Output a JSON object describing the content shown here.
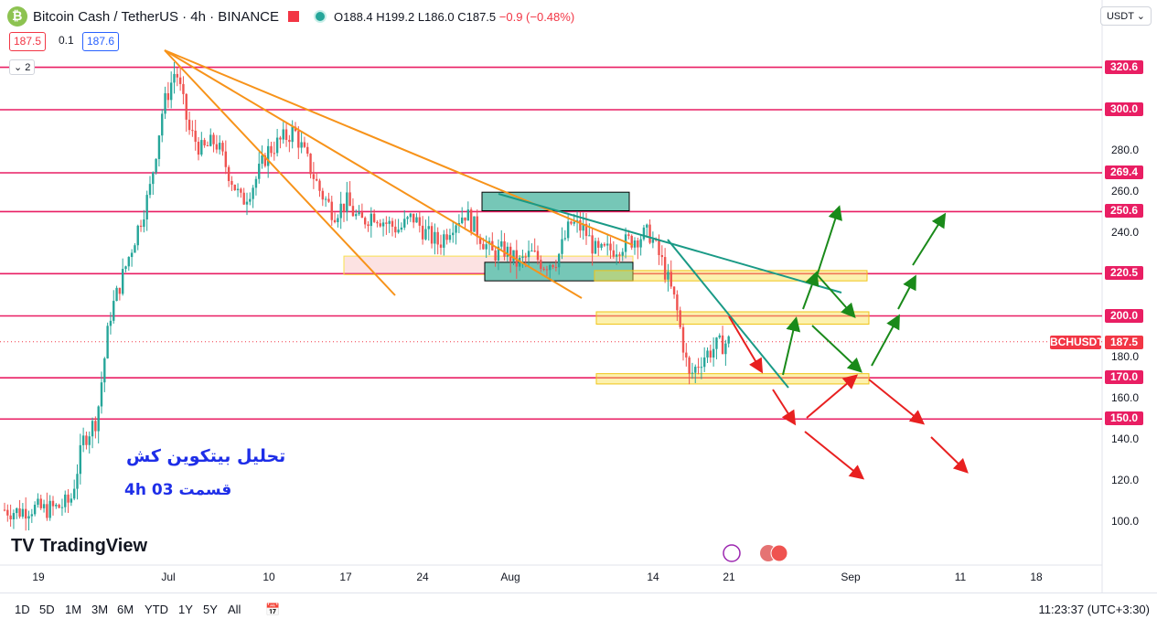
{
  "header": {
    "title": "Bitcoin Cash / TetherUS · 4h · BINANCE",
    "ohlc": {
      "o": "O188.4",
      "h": "H199.2",
      "l": "L186.0",
      "c": "C187.5",
      "chg": "−0.9 (−0.48%)"
    },
    "currency": "USDT"
  },
  "price_boxes": {
    "bid": "187.5",
    "spread": "0.1",
    "ask": "187.6"
  },
  "layers": "2",
  "branding": "TradingView",
  "annotations": {
    "title_fa": "تحلیل بیتکوین کش",
    "part_fa": "قسمت 03    4h"
  },
  "timeframes": [
    "1D",
    "5D",
    "1M",
    "3M",
    "6M",
    "YTD",
    "1Y",
    "5Y",
    "All"
  ],
  "clock": "11:23:37 (UTC+3:30)",
  "colors": {
    "up": "#26a69a",
    "down": "#ef5350",
    "level": "#e91e63",
    "trend": "#f7931a",
    "zone": "#f9e14b",
    "box": "#76c7b7"
  },
  "chart_data": {
    "type": "candlestick",
    "symbol": "BCHUSDT",
    "last_price": "187.5",
    "ylim": [
      80,
      330
    ],
    "y_ticks": [
      "100.0",
      "120.0",
      "140.0",
      "160.0",
      "180.0",
      "240.0",
      "260.0",
      "280.0"
    ],
    "levels": [
      "320.6",
      "300.0",
      "269.4",
      "250.6",
      "220.5",
      "200.0",
      "170.0",
      "150.0"
    ],
    "x_ticks": [
      "19",
      "Jul",
      "10",
      "17",
      "24",
      "Aug",
      "14",
      "21",
      "Sep",
      "11",
      "18"
    ],
    "path_closes": [
      106,
      105,
      107,
      106,
      107,
      110,
      140,
      150,
      200,
      220,
      240,
      260,
      300,
      320,
      290,
      280,
      285,
      270,
      255,
      265,
      280,
      285,
      290,
      275,
      260,
      250,
      255,
      245,
      250,
      245,
      242,
      248,
      240,
      235,
      245,
      250,
      240,
      230,
      232,
      225,
      230,
      225,
      228,
      245,
      242,
      230,
      232,
      235,
      238,
      240,
      225,
      205,
      170,
      180,
      185,
      187.5
    ],
    "forecast": "scenario arrows"
  }
}
